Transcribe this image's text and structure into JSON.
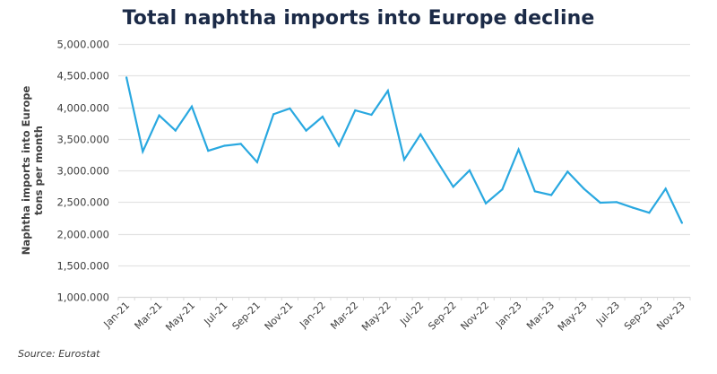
{
  "chart_data": {
    "type": "line",
    "title": "Total naphtha imports into Europe decline",
    "source": "Source: Eurostat",
    "xlabel": "",
    "ylabel_lines": [
      "Naphtha imports into Europe",
      "tons per month"
    ],
    "ylim": [
      1000000,
      5000000
    ],
    "ytick_values": [
      1000000,
      1500000,
      2000000,
      2500000,
      3000000,
      3500000,
      4000000,
      4500000,
      5000000
    ],
    "ytick_labels": [
      "1,000.000",
      "1,500.000",
      "2,000.000",
      "2,500.000",
      "3,000.000",
      "3,500.000",
      "4,000.000",
      "4,500.000",
      "5,000.000"
    ],
    "grid": true,
    "legend": "none",
    "line_color": "#29a8e0",
    "categories": [
      "Jan-21",
      "Feb-21",
      "Mar-21",
      "Apr-21",
      "May-21",
      "Jun-21",
      "Jul-21",
      "Aug-21",
      "Sep-21",
      "Oct-21",
      "Nov-21",
      "Dec-21",
      "Jan-22",
      "Feb-22",
      "Mar-22",
      "Apr-22",
      "May-22",
      "Jun-22",
      "Jul-22",
      "Aug-22",
      "Sep-22",
      "Oct-22",
      "Nov-22",
      "Dec-22",
      "Jan-23",
      "Feb-23",
      "Mar-23",
      "Apr-23",
      "May-23",
      "Jun-23",
      "Jul-23",
      "Aug-23",
      "Sep-23",
      "Oct-23",
      "Nov-23"
    ],
    "xtick_labels_shown": [
      "Jan-21",
      "Mar-21",
      "May-21",
      "Jul-21",
      "Sep-21",
      "Nov-21",
      "Jan-22",
      "Mar-22",
      "May-22",
      "Jul-22",
      "Sep-22",
      "Nov-22",
      "Jan-23",
      "Mar-23",
      "May-23",
      "Jul-23",
      "Sep-23",
      "Nov-23"
    ],
    "series": [
      {
        "name": "Naphtha imports into Europe",
        "values": [
          4470000,
          3300000,
          3870000,
          3630000,
          4010000,
          3310000,
          3390000,
          3420000,
          3130000,
          3890000,
          3980000,
          3630000,
          3850000,
          3390000,
          3950000,
          3880000,
          4260000,
          3170000,
          3570000,
          3150000,
          2740000,
          3000000,
          2480000,
          2700000,
          3330000,
          2670000,
          2610000,
          2980000,
          2710000,
          2490000,
          2500000,
          2410000,
          2330000,
          2710000,
          2170000
        ]
      }
    ]
  }
}
